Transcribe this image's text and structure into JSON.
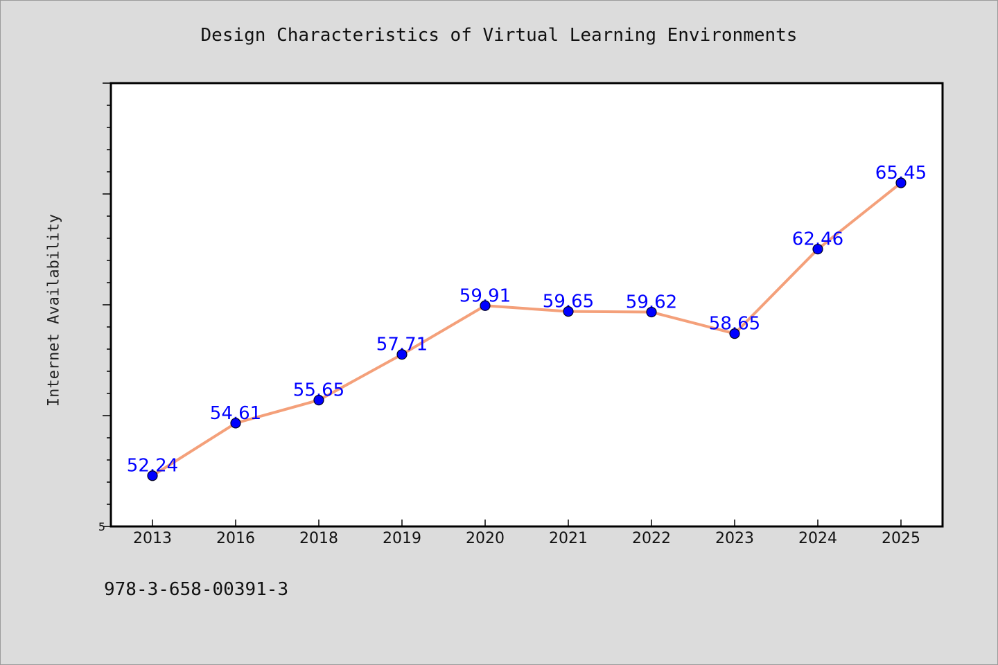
{
  "chart_data": {
    "type": "line",
    "title": "Design Characteristics of Virtual Learning Environments",
    "ylabel": "Internet Availability",
    "xlabel": "",
    "categories": [
      "2013",
      "2016",
      "2018",
      "2019",
      "2020",
      "2021",
      "2022",
      "2023",
      "2024",
      "2025"
    ],
    "series": [
      {
        "values": [
          52.24,
          54.61,
          55.65,
          57.71,
          59.91,
          59.65,
          59.62,
          58.65,
          62.46,
          65.45
        ],
        "line_color": "#f4a07a",
        "marker_color": "#0000ff",
        "label_color": "#0000ff"
      }
    ],
    "y_tick_label": "5",
    "ylim": [
      49.95,
      69.95
    ],
    "grid": false,
    "legend": "none"
  },
  "footer": {
    "isbn": "978-3-658-00391-3"
  }
}
